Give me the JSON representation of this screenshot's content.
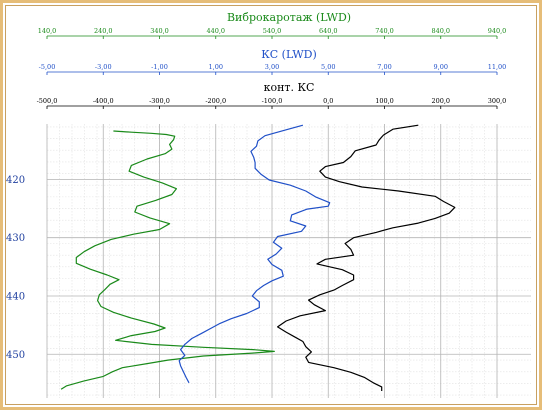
{
  "chart_data": {
    "type": "line",
    "scales": [
      {
        "name": "Виброкаротаж  (LWD)",
        "color": "#1a8a1a",
        "ticks": [
          "140,0",
          "240,0",
          "340,0",
          "440,0",
          "540,0",
          "640,0",
          "740,0",
          "840,0",
          "940,0"
        ],
        "range": [
          140,
          940
        ]
      },
      {
        "name": "КС (LWD)",
        "color": "#2050c8",
        "ticks": [
          "-5,00",
          "-3,00",
          "-1,00",
          "1,00",
          "3,00",
          "5,00",
          "7,00",
          "9,00",
          "11,00"
        ],
        "range": [
          -5,
          11
        ]
      },
      {
        "name": "конт. КС",
        "color": "#000000",
        "ticks": [
          "-500,0",
          "-400,0",
          "-300,0",
          "-200,0",
          "-100,0",
          "0,0",
          "100,0",
          "200,0",
          "300,0"
        ],
        "range": [
          -500,
          300
        ]
      }
    ],
    "depth_labels": [
      "420",
      "430",
      "440",
      "450"
    ],
    "depth_range": [
      410.5,
      457.5
    ],
    "grid": true,
    "series": [
      {
        "name": "Виброкаротаж  (LWD)",
        "color": "#1a8a1a",
        "points": [
          [
            411.7,
            258
          ],
          [
            411.9,
            290
          ],
          [
            412.1,
            325
          ],
          [
            412.3,
            352
          ],
          [
            412.6,
            367
          ],
          [
            413.2,
            365
          ],
          [
            414.0,
            358
          ],
          [
            414.8,
            362
          ],
          [
            415.6,
            350
          ],
          [
            416.5,
            318
          ],
          [
            417.6,
            290
          ],
          [
            418.6,
            286
          ],
          [
            419.6,
            312
          ],
          [
            420.6,
            345
          ],
          [
            421.6,
            370
          ],
          [
            422.6,
            362
          ],
          [
            423.6,
            333
          ],
          [
            424.6,
            300
          ],
          [
            425.6,
            296
          ],
          [
            426.6,
            323
          ],
          [
            427.6,
            358
          ],
          [
            428.6,
            340
          ],
          [
            429.4,
            294
          ],
          [
            430.3,
            254
          ],
          [
            431.4,
            225
          ],
          [
            432.4,
            206
          ],
          [
            433.4,
            192
          ],
          [
            434.4,
            192
          ],
          [
            435.4,
            217
          ],
          [
            436.4,
            247
          ],
          [
            437.2,
            268
          ],
          [
            438.0,
            252
          ],
          [
            438.9,
            243
          ],
          [
            439.8,
            233
          ],
          [
            440.8,
            230
          ],
          [
            441.8,
            236
          ],
          [
            442.8,
            258
          ],
          [
            443.8,
            290
          ],
          [
            444.8,
            330
          ],
          [
            445.5,
            350
          ],
          [
            446.1,
            332
          ],
          [
            446.8,
            290
          ],
          [
            447.6,
            262
          ],
          [
            448.3,
            326
          ],
          [
            448.8,
            418
          ],
          [
            449.2,
            506
          ],
          [
            449.5,
            544
          ],
          [
            449.8,
            505
          ],
          [
            450.3,
            418
          ],
          [
            451.0,
            355
          ],
          [
            451.6,
            318
          ],
          [
            452.3,
            274
          ],
          [
            453.0,
            256
          ],
          [
            453.8,
            240
          ],
          [
            454.6,
            205
          ],
          [
            455.4,
            175
          ],
          [
            456.0,
            165
          ]
        ]
      },
      {
        "name": "КС (LWD)",
        "color": "#2050c8",
        "points": [
          [
            410.7,
            4.1
          ],
          [
            411.5,
            3.5
          ],
          [
            412.5,
            2.75
          ],
          [
            413.4,
            2.5
          ],
          [
            414.3,
            2.45
          ],
          [
            415.2,
            2.25
          ],
          [
            416.2,
            2.35
          ],
          [
            417.1,
            2.4
          ],
          [
            418.1,
            2.4
          ],
          [
            419.1,
            2.6
          ],
          [
            420.1,
            2.9
          ],
          [
            421.0,
            3.65
          ],
          [
            422.0,
            4.2
          ],
          [
            423.0,
            4.55
          ],
          [
            424.0,
            5.05
          ],
          [
            424.6,
            5.0
          ],
          [
            425.1,
            4.25
          ],
          [
            426.1,
            3.7
          ],
          [
            427.1,
            3.65
          ],
          [
            428.0,
            4.2
          ],
          [
            428.9,
            4.05
          ],
          [
            429.8,
            3.2
          ],
          [
            430.8,
            3.05
          ],
          [
            431.8,
            3.35
          ],
          [
            432.8,
            3.15
          ],
          [
            433.7,
            2.85
          ],
          [
            434.6,
            3.0
          ],
          [
            435.6,
            3.35
          ],
          [
            436.6,
            3.4
          ],
          [
            437.4,
            3.0
          ],
          [
            438.2,
            2.7
          ],
          [
            439.1,
            2.45
          ],
          [
            440.0,
            2.3
          ],
          [
            441.0,
            2.55
          ],
          [
            442.0,
            2.55
          ],
          [
            443.0,
            2.1
          ],
          [
            443.9,
            1.55
          ],
          [
            444.7,
            1.15
          ],
          [
            445.5,
            0.85
          ],
          [
            446.4,
            0.5
          ],
          [
            447.3,
            0.15
          ],
          [
            448.3,
            -0.1
          ],
          [
            449.2,
            -0.25
          ],
          [
            450.2,
            -0.1
          ],
          [
            451.1,
            -0.3
          ],
          [
            452.0,
            -0.25
          ],
          [
            453.0,
            -0.15
          ],
          [
            454.0,
            -0.05
          ],
          [
            454.9,
            0.05
          ]
        ]
      },
      {
        "name": "конт. КС",
        "color": "#000000",
        "points": [
          [
            410.7,
            160
          ],
          [
            411.4,
            115
          ],
          [
            412.4,
            98
          ],
          [
            413.3,
            90
          ],
          [
            414.1,
            85
          ],
          [
            415.1,
            48
          ],
          [
            416.1,
            40
          ],
          [
            417.1,
            27
          ],
          [
            417.8,
            -5
          ],
          [
            418.6,
            -15
          ],
          [
            419.6,
            -5
          ],
          [
            420.4,
            20
          ],
          [
            421.3,
            60
          ],
          [
            422.0,
            125
          ],
          [
            422.9,
            190
          ],
          [
            423.8,
            205
          ],
          [
            424.8,
            225
          ],
          [
            425.8,
            215
          ],
          [
            426.7,
            190
          ],
          [
            427.5,
            160
          ],
          [
            428.3,
            115
          ],
          [
            429.1,
            85
          ],
          [
            430.0,
            45
          ],
          [
            431.0,
            30
          ],
          [
            432.0,
            40
          ],
          [
            433.0,
            45
          ],
          [
            433.7,
            -5
          ],
          [
            434.5,
            -20
          ],
          [
            435.5,
            25
          ],
          [
            436.4,
            45
          ],
          [
            437.2,
            45
          ],
          [
            438.2,
            25
          ],
          [
            439.0,
            10
          ],
          [
            439.8,
            -15
          ],
          [
            440.7,
            -35
          ],
          [
            441.5,
            -25
          ],
          [
            442.5,
            -5
          ],
          [
            443.4,
            -50
          ],
          [
            444.3,
            -75
          ],
          [
            445.3,
            -90
          ],
          [
            446.2,
            -75
          ],
          [
            447.0,
            -60
          ],
          [
            447.8,
            -45
          ],
          [
            448.7,
            -40
          ],
          [
            449.6,
            -30
          ],
          [
            450.5,
            -40
          ],
          [
            451.4,
            -35
          ],
          [
            452.3,
            10
          ],
          [
            453.1,
            40
          ],
          [
            454.0,
            65
          ],
          [
            454.9,
            80
          ],
          [
            455.6,
            95
          ],
          [
            456.3,
            95
          ]
        ]
      }
    ]
  }
}
